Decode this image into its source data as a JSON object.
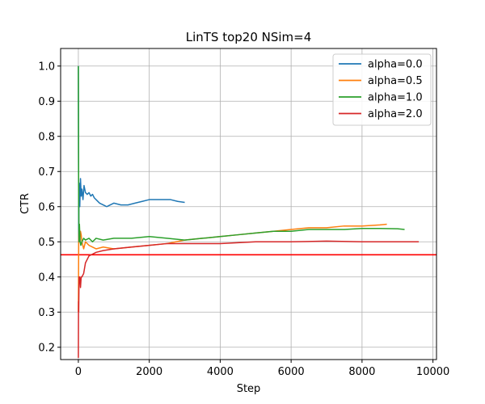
{
  "chart_data": {
    "type": "line",
    "title": "LinTS top20 NSim=4",
    "xlabel": "Step",
    "ylabel": "CTR",
    "xlim": [
      -500,
      10100
    ],
    "ylim": [
      0.165,
      1.05
    ],
    "xticks": [
      0,
      2000,
      4000,
      6000,
      8000,
      10000
    ],
    "xtick_labels": [
      "0",
      "2000",
      "4000",
      "6000",
      "8000",
      "10000"
    ],
    "yticks": [
      0.2,
      0.3,
      0.4,
      0.5,
      0.6,
      0.7,
      0.8,
      0.9,
      1.0
    ],
    "ytick_labels": [
      "0.2",
      "0.3",
      "0.4",
      "0.5",
      "0.6",
      "0.7",
      "0.8",
      "0.9",
      "1.0"
    ],
    "grid": true,
    "legend_position": "top-right",
    "reference_line": {
      "y": 0.463,
      "color": "#ff0000"
    },
    "series": [
      {
        "name": "alpha=0.0",
        "color": "#1f77b4",
        "x": [
          0,
          10,
          20,
          40,
          60,
          80,
          100,
          130,
          160,
          200,
          250,
          300,
          350,
          400,
          450,
          500,
          600,
          700,
          800,
          900,
          1000,
          1200,
          1400,
          1600,
          1800,
          2000,
          2200,
          2400,
          2600,
          2800,
          3000
        ],
        "y": [
          1.0,
          0.5,
          0.667,
          0.6,
          0.68,
          0.63,
          0.65,
          0.62,
          0.66,
          0.64,
          0.635,
          0.64,
          0.63,
          0.635,
          0.625,
          0.62,
          0.61,
          0.605,
          0.6,
          0.605,
          0.61,
          0.605,
          0.605,
          0.61,
          0.615,
          0.62,
          0.62,
          0.62,
          0.62,
          0.615,
          0.612
        ]
      },
      {
        "name": "alpha=0.5",
        "color": "#ff7f0e",
        "x": [
          0,
          10,
          20,
          40,
          60,
          80,
          100,
          150,
          200,
          300,
          400,
          500,
          700,
          1000,
          1500,
          2000,
          2500,
          3000,
          3500,
          4000,
          4500,
          5000,
          5500,
          6000,
          6500,
          7000,
          7500,
          8000,
          8500,
          8700
        ],
        "y": [
          0.3,
          0.5,
          0.55,
          0.5,
          0.53,
          0.52,
          0.5,
          0.48,
          0.5,
          0.49,
          0.485,
          0.48,
          0.485,
          0.48,
          0.485,
          0.49,
          0.495,
          0.505,
          0.51,
          0.515,
          0.52,
          0.525,
          0.53,
          0.535,
          0.54,
          0.54,
          0.545,
          0.545,
          0.548,
          0.55
        ]
      },
      {
        "name": "alpha=1.0",
        "color": "#2ca02c",
        "x": [
          0,
          5,
          10,
          20,
          30,
          50,
          70,
          100,
          150,
          200,
          300,
          400,
          500,
          700,
          1000,
          1500,
          2000,
          2500,
          3000,
          3500,
          4000,
          4500,
          5000,
          5500,
          6000,
          6500,
          7000,
          7500,
          8000,
          8500,
          9000,
          9200
        ],
        "y": [
          1.0,
          0.75,
          0.6,
          0.5,
          0.55,
          0.5,
          0.49,
          0.5,
          0.51,
          0.505,
          0.51,
          0.5,
          0.51,
          0.505,
          0.51,
          0.51,
          0.515,
          0.51,
          0.505,
          0.51,
          0.515,
          0.52,
          0.525,
          0.53,
          0.53,
          0.535,
          0.535,
          0.535,
          0.538,
          0.538,
          0.537,
          0.535
        ]
      },
      {
        "name": "alpha=2.0",
        "color": "#d62728",
        "x": [
          0,
          5,
          10,
          20,
          30,
          40,
          60,
          80,
          100,
          150,
          200,
          300,
          400,
          500,
          700,
          1000,
          1500,
          2000,
          2500,
          3000,
          3500,
          4000,
          5000,
          6000,
          7000,
          8000,
          9000,
          9600
        ],
        "y": [
          0.17,
          0.33,
          0.3,
          0.4,
          0.39,
          0.4,
          0.37,
          0.4,
          0.4,
          0.41,
          0.44,
          0.46,
          0.465,
          0.47,
          0.475,
          0.48,
          0.485,
          0.49,
          0.495,
          0.495,
          0.495,
          0.495,
          0.5,
          0.5,
          0.502,
          0.5,
          0.5,
          0.5
        ]
      }
    ]
  }
}
